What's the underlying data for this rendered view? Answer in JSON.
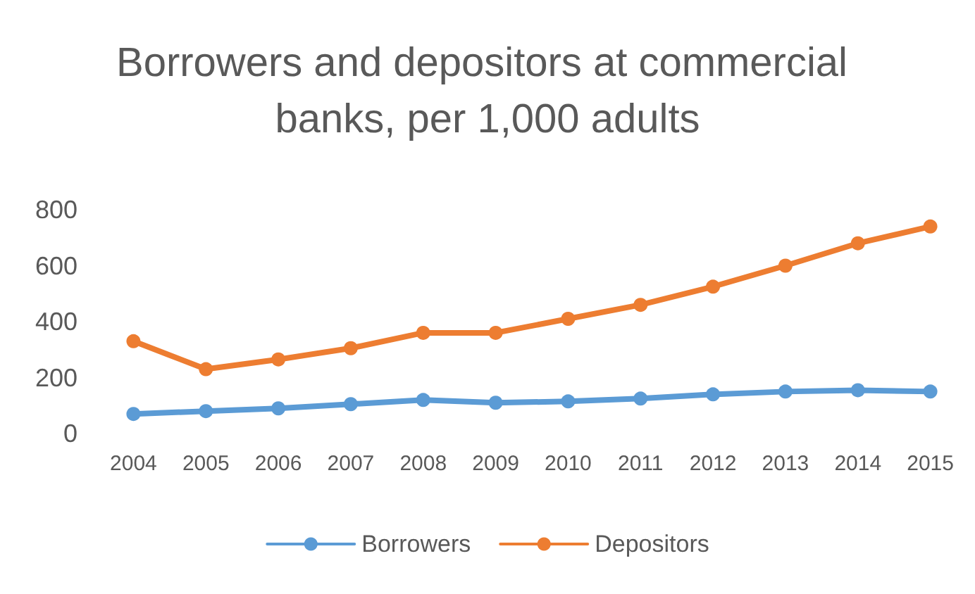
{
  "chart_data": {
    "type": "line",
    "title": "Borrowers and depositors at commercial banks, per 1,000 adults",
    "categories": [
      "2004",
      "2005",
      "2006",
      "2007",
      "2008",
      "2009",
      "2010",
      "2011",
      "2012",
      "2013",
      "2014",
      "2015"
    ],
    "series": [
      {
        "name": "Borrowers",
        "color": "#5b9bd5",
        "values": [
          70,
          80,
          90,
          105,
          120,
          110,
          115,
          125,
          140,
          150,
          155,
          150
        ]
      },
      {
        "name": "Depositors",
        "color": "#ed7d31",
        "values": [
          330,
          230,
          265,
          305,
          360,
          360,
          410,
          460,
          525,
          600,
          680,
          740
        ]
      }
    ],
    "ylim": [
      0,
      800
    ],
    "yticks": [
      0,
      200,
      400,
      600,
      800
    ],
    "grid": false,
    "legend": "bottom",
    "marker": "circle",
    "line_style": "solid"
  }
}
